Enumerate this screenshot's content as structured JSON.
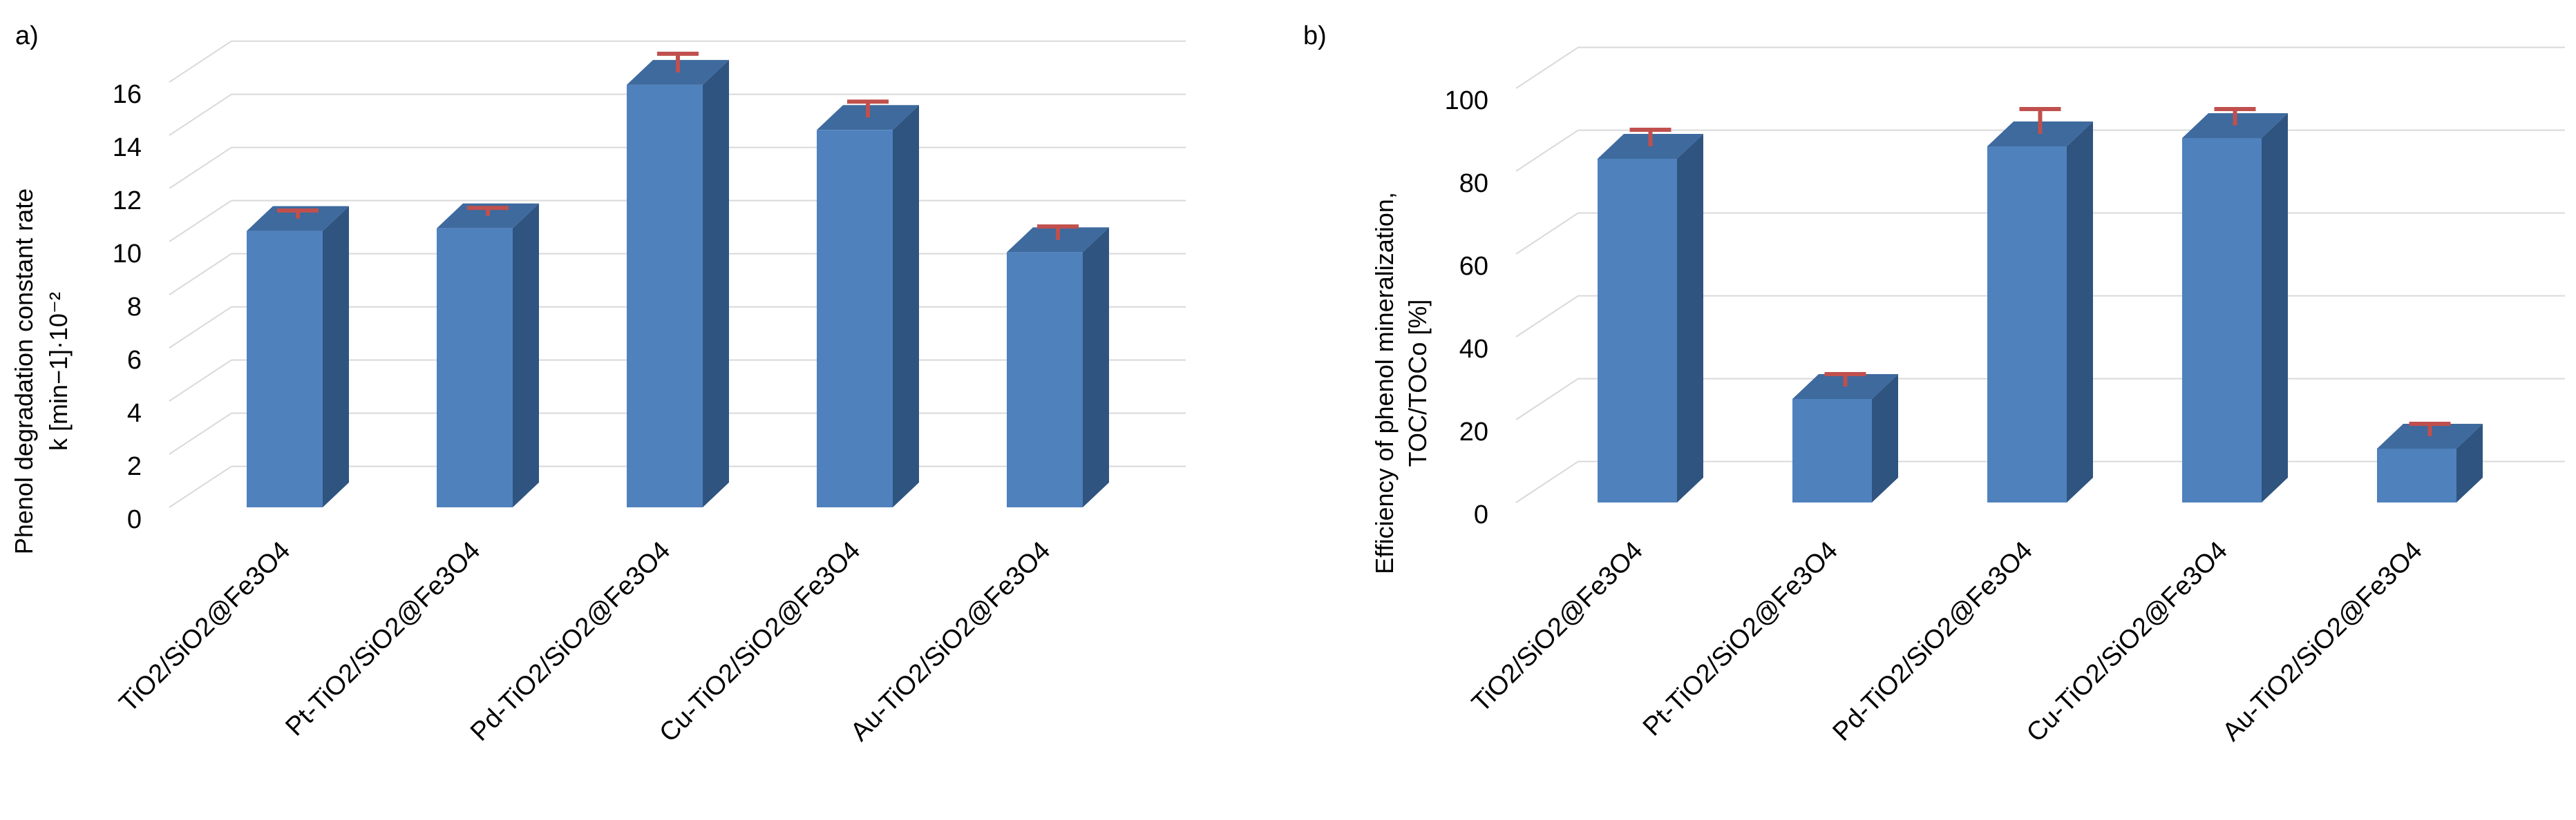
{
  "colors": {
    "bar_front": "#4F81BD",
    "bar_top": "#3E6A9E",
    "bar_side": "#2F5480",
    "error_bar": "#C0504D",
    "gridline": "#D9D9D9"
  },
  "chart_data": [
    {
      "panel_label": "a)",
      "type": "bar",
      "style": "3d-column",
      "title": "",
      "xlabel": "",
      "ylabel_lines": [
        "Phenol degradation constant rate",
        "k [min−1]·10⁻²"
      ],
      "categories": [
        "TiO2/SiO2@Fe3O4",
        "Pt-TiO2/SiO2@Fe3O4",
        "Pd-TiO2/SiO2@Fe3O4",
        "Cu-TiO2/SiO2@Fe3O4",
        "Au-TiO2/SiO2@Fe3O4"
      ],
      "values": [
        10.4,
        10.5,
        15.9,
        14.2,
        9.6
      ],
      "error_plus": [
        0.3,
        0.3,
        0.7,
        0.6,
        0.5
      ],
      "ylim": [
        0,
        16
      ],
      "yticks": [
        "0",
        "2",
        "4",
        "6",
        "8",
        "10",
        "12",
        "14",
        "16"
      ],
      "grid": true,
      "legend": "none"
    },
    {
      "panel_label": "b)",
      "type": "bar",
      "style": "3d-column",
      "title": "",
      "xlabel": "",
      "ylabel_lines": [
        "Efficiency of phenol mineralization,",
        "TOC/TOCo [%]"
      ],
      "categories": [
        "TiO2/SiO2@Fe3O4",
        "Pt-TiO2/SiO2@Fe3O4",
        "Pd-TiO2/SiO2@Fe3O4",
        "Cu-TiO2/SiO2@Fe3O4",
        "Au-TiO2/SiO2@Fe3O4"
      ],
      "values": [
        83,
        25,
        86,
        88,
        13
      ],
      "error_plus": [
        4,
        3,
        6,
        4,
        3
      ],
      "ylim": [
        0,
        100
      ],
      "yticks": [
        "0",
        "20",
        "40",
        "60",
        "80",
        "100"
      ],
      "grid": true,
      "legend": "none"
    }
  ]
}
